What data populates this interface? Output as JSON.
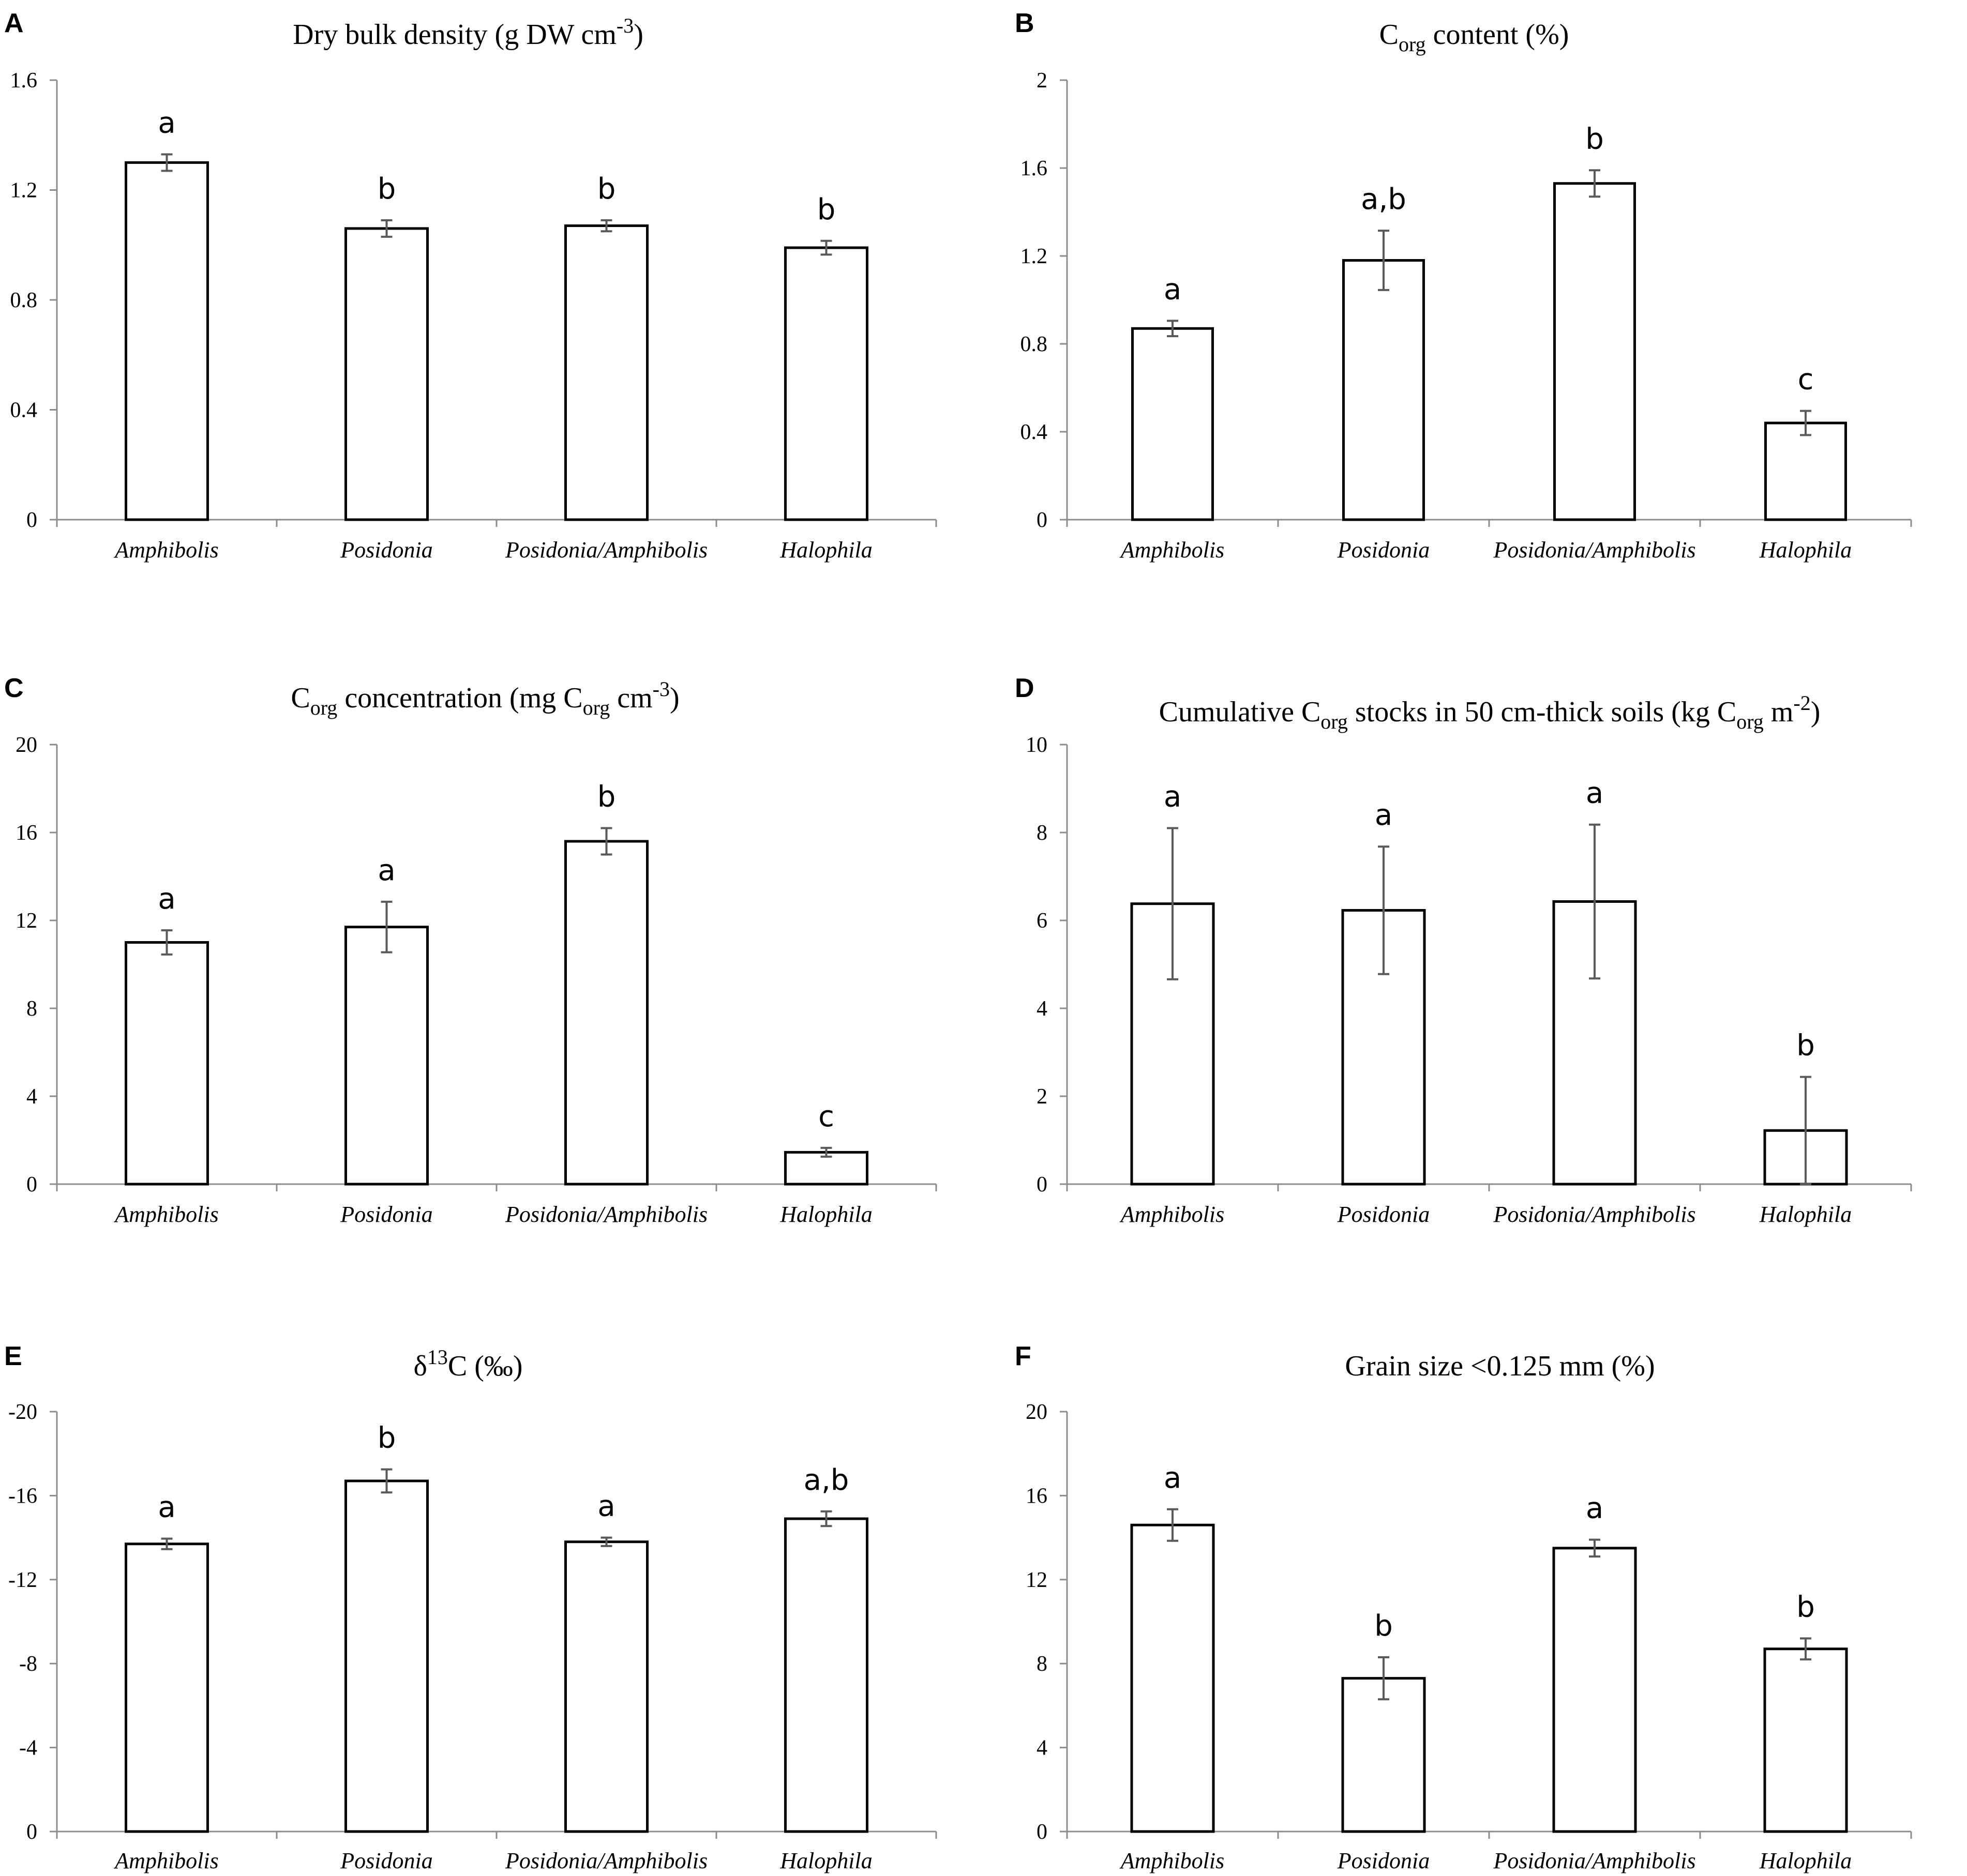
{
  "chart_data": [
    {
      "panel": "A",
      "type": "bar",
      "title_parts": [
        {
          "t": "Dry bulk density (g DW cm",
          "s": "n"
        },
        {
          "t": "-3",
          "s": "sup"
        },
        {
          "t": ")",
          "s": "n"
        }
      ],
      "categories": [
        "Amphibolis",
        "Posidonia",
        "Posidonia/Amphibolis",
        "Halophila"
      ],
      "values": [
        1.3,
        1.06,
        1.07,
        0.99
      ],
      "errors": [
        0.03,
        0.03,
        0.02,
        0.025
      ],
      "significance": [
        "a",
        "b",
        "b",
        "b"
      ],
      "ylim": [
        0,
        1.6
      ],
      "yticks": [
        0,
        0.4,
        0.8,
        1.2,
        1.6
      ],
      "ytick_labels": [
        "0",
        "0.4",
        "0.8",
        "1.2",
        "1.6"
      ],
      "inverted": false
    },
    {
      "panel": "B",
      "type": "bar",
      "title_parts": [
        {
          "t": "C",
          "s": "n"
        },
        {
          "t": "org",
          "s": "sub"
        },
        {
          "t": " content (%)",
          "s": "n"
        }
      ],
      "categories": [
        "Amphibolis",
        "Posidonia",
        "Posidonia/Amphibolis",
        "Halophila"
      ],
      "values": [
        0.87,
        1.18,
        1.53,
        0.44
      ],
      "errors": [
        0.035,
        0.135,
        0.06,
        0.055
      ],
      "significance": [
        "a",
        "a,b",
        "b",
        "c"
      ],
      "ylim": [
        0,
        2
      ],
      "yticks": [
        0,
        0.4,
        0.8,
        1.2,
        1.6,
        2
      ],
      "ytick_labels": [
        "0",
        "0.4",
        "0.8",
        "1.2",
        "1.6",
        "2"
      ],
      "inverted": false
    },
    {
      "panel": "C",
      "type": "bar",
      "title_parts": [
        {
          "t": "C",
          "s": "n"
        },
        {
          "t": "org",
          "s": "sub"
        },
        {
          "t": " concentration (mg C",
          "s": "n"
        },
        {
          "t": "org",
          "s": "sub"
        },
        {
          "t": " cm",
          "s": "n"
        },
        {
          "t": "-3",
          "s": "sup"
        },
        {
          "t": ")",
          "s": "n"
        }
      ],
      "categories": [
        "Amphibolis",
        "Posidonia",
        "Posidonia/Amphibolis",
        "Halophila"
      ],
      "values": [
        11.0,
        11.7,
        15.6,
        1.45
      ],
      "errors": [
        0.55,
        1.15,
        0.6,
        0.2
      ],
      "significance": [
        "a",
        "a",
        "b",
        "c"
      ],
      "ylim": [
        0,
        20
      ],
      "yticks": [
        0,
        4,
        8,
        12,
        16,
        20
      ],
      "ytick_labels": [
        "0",
        "4",
        "8",
        "12",
        "16",
        "20"
      ],
      "inverted": false
    },
    {
      "panel": "D",
      "type": "bar",
      "title_parts": [
        {
          "t": "Cumulative C",
          "s": "n"
        },
        {
          "t": "org",
          "s": "sub"
        },
        {
          "t": " stocks in 50 cm-thick soils (kg C",
          "s": "n"
        },
        {
          "t": "org",
          "s": "sub"
        },
        {
          "t": " m",
          "s": "n"
        },
        {
          "t": "-2",
          "s": "sup"
        },
        {
          "t": ")",
          "s": "n"
        }
      ],
      "categories": [
        "Amphibolis",
        "Posidonia",
        "Posidonia/Amphibolis",
        "Halophila"
      ],
      "values": [
        6.38,
        6.23,
        6.43,
        1.22
      ],
      "errors": [
        1.72,
        1.45,
        1.75,
        1.22
      ],
      "significance": [
        "a",
        "a",
        "a",
        "b"
      ],
      "ylim": [
        0,
        10
      ],
      "yticks": [
        0,
        2,
        4,
        6,
        8,
        10
      ],
      "ytick_labels": [
        "0",
        "2",
        "4",
        "6",
        "8",
        "10"
      ],
      "inverted": false
    },
    {
      "panel": "E",
      "type": "bar",
      "title_parts": [
        {
          "t": "δ",
          "s": "n"
        },
        {
          "t": "13",
          "s": "sup"
        },
        {
          "t": "C (‰)",
          "s": "n"
        }
      ],
      "categories": [
        "Amphibolis",
        "Posidonia",
        "Posidonia/Amphibolis",
        "Halophila"
      ],
      "values": [
        -13.7,
        -16.7,
        -13.8,
        -14.9
      ],
      "errors": [
        0.25,
        0.55,
        0.2,
        0.35
      ],
      "significance": [
        "a",
        "b",
        "a",
        "a,b"
      ],
      "ylim": [
        0,
        -20
      ],
      "yticks": [
        0,
        -4,
        -8,
        -12,
        -16,
        -20
      ],
      "ytick_labels": [
        "0",
        "-4",
        "-8",
        "-12",
        "-16",
        "-20"
      ],
      "inverted": true
    },
    {
      "panel": "F",
      "type": "bar",
      "title_parts": [
        {
          "t": "Grain size <0.125 mm (%)",
          "s": "n"
        }
      ],
      "categories": [
        "Amphibolis",
        "Posidonia",
        "Posidonia/Amphibolis",
        "Halophila"
      ],
      "values": [
        14.6,
        7.3,
        13.5,
        8.7
      ],
      "errors": [
        0.75,
        1.0,
        0.4,
        0.5
      ],
      "significance": [
        "a",
        "b",
        "a",
        "b"
      ],
      "ylim": [
        0,
        20
      ],
      "yticks": [
        0,
        4,
        8,
        12,
        16,
        20
      ],
      "ytick_labels": [
        "0",
        "4",
        "8",
        "12",
        "16",
        "20"
      ],
      "inverted": false
    }
  ]
}
